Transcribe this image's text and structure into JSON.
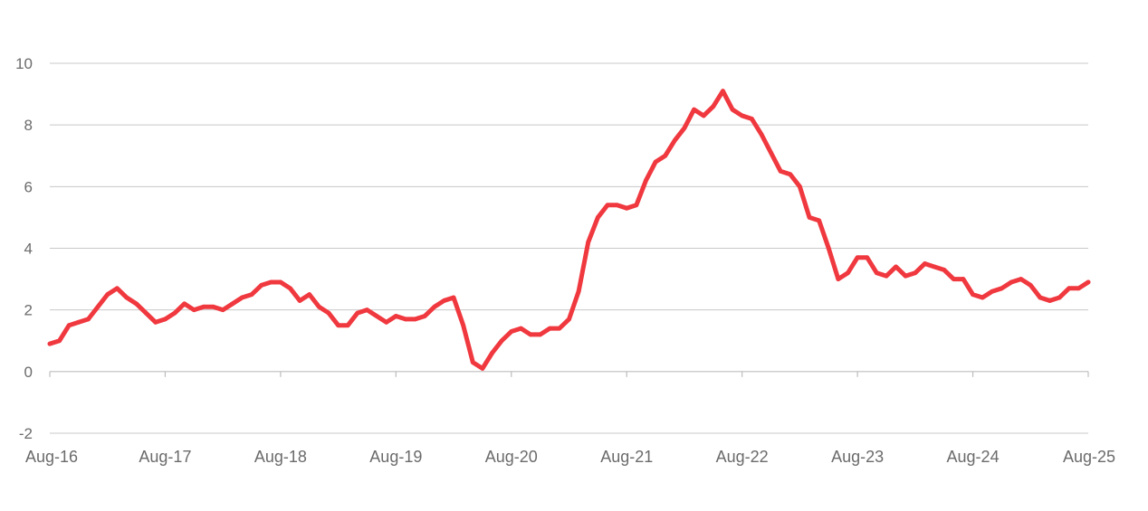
{
  "chart_data": {
    "type": "line",
    "title": "",
    "xlabel": "",
    "ylabel": "",
    "ylim": [
      -2,
      10
    ],
    "yticks": [
      -2,
      0,
      2,
      4,
      6,
      8,
      10
    ],
    "xtick_labels": [
      "Aug-16",
      "Aug-17",
      "Aug-18",
      "Aug-19",
      "Aug-20",
      "Aug-21",
      "Aug-22",
      "Aug-23",
      "Aug-24",
      "Aug-25"
    ],
    "grid": true,
    "legend": "none",
    "series": [
      {
        "color": "#f0383f",
        "x": [
          "Aug-16",
          "Sep-16",
          "Oct-16",
          "Nov-16",
          "Dec-16",
          "Jan-17",
          "Feb-17",
          "Mar-17",
          "Apr-17",
          "May-17",
          "Jun-17",
          "Jul-17",
          "Aug-17",
          "Sep-17",
          "Oct-17",
          "Nov-17",
          "Dec-17",
          "Jan-18",
          "Feb-18",
          "Mar-18",
          "Apr-18",
          "May-18",
          "Jun-18",
          "Jul-18",
          "Aug-18",
          "Sep-18",
          "Oct-18",
          "Nov-18",
          "Dec-18",
          "Jan-19",
          "Feb-19",
          "Mar-19",
          "Apr-19",
          "May-19",
          "Jun-19",
          "Jul-19",
          "Aug-19",
          "Sep-19",
          "Oct-19",
          "Nov-19",
          "Dec-19",
          "Jan-20",
          "Feb-20",
          "Mar-20",
          "Apr-20",
          "May-20",
          "Jun-20",
          "Jul-20",
          "Aug-20",
          "Sep-20",
          "Oct-20",
          "Nov-20",
          "Dec-20",
          "Jan-21",
          "Feb-21",
          "Mar-21",
          "Apr-21",
          "May-21",
          "Jun-21",
          "Jul-21",
          "Aug-21",
          "Sep-21",
          "Oct-21",
          "Nov-21",
          "Dec-21",
          "Jan-22",
          "Feb-22",
          "Mar-22",
          "Apr-22",
          "May-22",
          "Jun-22",
          "Jul-22",
          "Aug-22",
          "Sep-22",
          "Oct-22",
          "Nov-22",
          "Dec-22",
          "Jan-23",
          "Feb-23",
          "Mar-23",
          "Apr-23",
          "May-23",
          "Jun-23",
          "Jul-23",
          "Aug-23",
          "Sep-23",
          "Oct-23",
          "Nov-23",
          "Dec-23",
          "Jan-24",
          "Feb-24",
          "Mar-24",
          "Apr-24",
          "May-24",
          "Jun-24",
          "Jul-24",
          "Aug-24",
          "Sep-24",
          "Oct-24",
          "Nov-24",
          "Dec-24",
          "Jan-25",
          "Feb-25",
          "Mar-25",
          "Apr-25",
          "May-25",
          "Jun-25",
          "Jul-25",
          "Aug-25"
        ],
        "values": [
          0.9,
          1.0,
          1.5,
          1.6,
          1.7,
          2.1,
          2.5,
          2.7,
          2.4,
          2.2,
          1.9,
          1.6,
          1.7,
          1.9,
          2.2,
          2.0,
          2.1,
          2.1,
          2.0,
          2.2,
          2.4,
          2.5,
          2.8,
          2.9,
          2.9,
          2.7,
          2.3,
          2.5,
          2.1,
          1.9,
          1.5,
          1.5,
          1.9,
          2.0,
          1.8,
          1.6,
          1.8,
          1.7,
          1.7,
          1.8,
          2.1,
          2.3,
          2.4,
          1.5,
          0.3,
          0.1,
          0.6,
          1.0,
          1.3,
          1.4,
          1.2,
          1.2,
          1.4,
          1.4,
          1.7,
          2.6,
          4.2,
          5.0,
          5.4,
          5.4,
          5.3,
          5.4,
          6.2,
          6.8,
          7.0,
          7.5,
          7.9,
          8.5,
          8.3,
          8.6,
          9.1,
          8.5,
          8.3,
          8.2,
          7.7,
          7.1,
          6.5,
          6.4,
          6.0,
          5.0,
          4.9,
          4.0,
          3.0,
          3.2,
          3.7,
          3.7,
          3.2,
          3.1,
          3.4,
          3.1,
          3.2,
          3.5,
          3.4,
          3.3,
          3.0,
          3.0,
          2.5,
          2.4,
          2.6,
          2.7,
          2.9,
          3.0,
          2.8,
          2.4,
          2.3,
          2.4,
          2.7,
          2.7,
          2.9
        ]
      }
    ]
  }
}
